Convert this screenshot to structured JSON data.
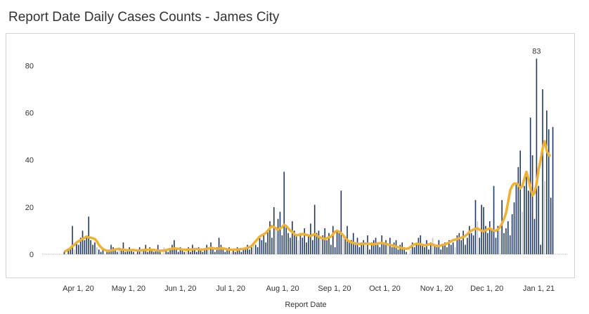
{
  "header": {
    "title": "Report Date Daily Cases Counts - James City"
  },
  "colors": {
    "bars": "#1f3864",
    "bars_light": "#c8c8c8",
    "moving_average": "#f0b030",
    "zero_line": "#aaaaaa",
    "frame": "#d4d4d4"
  },
  "chart_data": {
    "type": "bar",
    "title": "Report Date Daily Cases Counts - James City",
    "xlabel": "Report Date",
    "ylabel": "",
    "ylim": [
      -3,
      90
    ],
    "yticks": [
      0,
      20,
      40,
      60,
      80
    ],
    "x_start": "2020-03-23",
    "x_end": "2021-01-10",
    "xticks": [
      {
        "label": "Apr 1, 20",
        "date": "2020-04-01"
      },
      {
        "label": "May 1, 20",
        "date": "2020-05-01"
      },
      {
        "label": "Jun 1, 20",
        "date": "2020-06-01"
      },
      {
        "label": "Jul 1, 20",
        "date": "2020-07-01"
      },
      {
        "label": "Aug 1, 20",
        "date": "2020-08-01"
      },
      {
        "label": "Sep 1, 20",
        "date": "2020-09-01"
      },
      {
        "label": "Oct 1, 20",
        "date": "2020-10-01"
      },
      {
        "label": "Nov 1, 20",
        "date": "2020-11-01"
      },
      {
        "label": "Dec 1, 20",
        "date": "2020-12-01"
      },
      {
        "label": "Jan 1, 21",
        "date": "2021-01-01"
      }
    ],
    "peak_label": "83",
    "series": [
      {
        "kind": "bars",
        "values": [
          1,
          0,
          2,
          3,
          12,
          2,
          5,
          4,
          7,
          10,
          6,
          8,
          16,
          6,
          4,
          5,
          3,
          2,
          1,
          2,
          0,
          1,
          2,
          4,
          3,
          2,
          1,
          3,
          2,
          5,
          1,
          2,
          3,
          2,
          1,
          0,
          2,
          3,
          1,
          2,
          4,
          1,
          3,
          2,
          1,
          2,
          4,
          1,
          0,
          3,
          2,
          1,
          2,
          4,
          6,
          2,
          1,
          3,
          2,
          1,
          2,
          3,
          1,
          4,
          2,
          1,
          3,
          2,
          1,
          2,
          4,
          3,
          5,
          2,
          1,
          3,
          7,
          4,
          2,
          1,
          2,
          3,
          1,
          2,
          1,
          3,
          2,
          1,
          2,
          3,
          4,
          2,
          3,
          5,
          4,
          3,
          8,
          6,
          9,
          5,
          10,
          14,
          7,
          20,
          11,
          15,
          18,
          8,
          35,
          12,
          9,
          7,
          14,
          10,
          8,
          6,
          9,
          7,
          11,
          5,
          8,
          13,
          6,
          21,
          9,
          10,
          7,
          8,
          11,
          6,
          9,
          4,
          12,
          3,
          10,
          9,
          27,
          8,
          7,
          12,
          5,
          6,
          9,
          4,
          7,
          3,
          5,
          6,
          4,
          8,
          2,
          5,
          6,
          7,
          4,
          3,
          8,
          5,
          6,
          4,
          7,
          3,
          5,
          6,
          2,
          4,
          5,
          3,
          1,
          0,
          2,
          5,
          3,
          4,
          7,
          8,
          4,
          3,
          6,
          2,
          5,
          7,
          4,
          3,
          6,
          2,
          4,
          5,
          3,
          6,
          4,
          5,
          3,
          8,
          9,
          6,
          10,
          4,
          7,
          12,
          9,
          8,
          23,
          14,
          7,
          21,
          20,
          12,
          9,
          14,
          11,
          29,
          7,
          12,
          10,
          23,
          9,
          11,
          14,
          8,
          17,
          22,
          30,
          37,
          44,
          18,
          29,
          34,
          27,
          58,
          42,
          15,
          83,
          29,
          4,
          70,
          31,
          61,
          53,
          24,
          54
        ]
      },
      {
        "kind": "line",
        "name": "",
        "values": [
          1,
          1.5,
          2,
          2.5,
          3.5,
          4,
          5,
          5.5,
          6,
          6.5,
          7,
          7.5,
          7.2,
          7,
          6.8,
          6.5,
          5.5,
          4,
          3,
          2.2,
          1.8,
          1.5,
          1.5,
          1.6,
          1.8,
          2,
          2.2,
          2.2,
          2,
          2,
          1.8,
          1.7,
          1.7,
          1.8,
          1.8,
          1.7,
          1.6,
          1.6,
          1.7,
          1.8,
          1.8,
          1.9,
          2,
          1.9,
          1.8,
          1.7,
          1.6,
          1.5,
          1.5,
          1.6,
          1.8,
          2,
          2.2,
          2.4,
          2.5,
          2.4,
          2.3,
          2.2,
          2,
          1.9,
          1.9,
          2,
          2,
          2.1,
          2.2,
          2.2,
          2.1,
          2,
          2,
          2.1,
          2.3,
          2.5,
          2.7,
          2.6,
          2.4,
          2.3,
          2.4,
          2.6,
          2.5,
          2.3,
          2.1,
          2,
          1.9,
          1.9,
          2,
          2,
          2.1,
          2.2,
          2.3,
          2.5,
          2.8,
          3,
          3.5,
          4.5,
          5.5,
          6.5,
          7.5,
          8,
          8.5,
          9,
          10,
          11,
          12,
          11.5,
          11,
          10.5,
          11,
          11.5,
          12.5,
          12,
          11,
          10,
          9.5,
          8.5,
          8,
          8.2,
          8.4,
          8.6,
          8.5,
          8.2,
          8,
          7.8,
          8.2,
          8.5,
          8,
          7.5,
          7,
          6.8,
          6.5,
          6.8,
          7.2,
          7.5,
          8.5,
          9.5,
          10,
          9.5,
          9,
          8,
          7,
          6,
          5.5,
          5,
          4.8,
          4.6,
          4.5,
          4.4,
          4.4,
          4.5,
          4.6,
          4.5,
          4.4,
          4.3,
          4.2,
          4.4,
          4.6,
          4.7,
          4.8,
          4.6,
          4.4,
          4.2,
          4,
          3.8,
          3.5,
          3.2,
          3,
          2.8,
          2.6,
          2.4,
          2.3,
          2.5,
          3,
          3.8,
          4.2,
          4.5,
          4.4,
          4.3,
          4,
          3.8,
          3.9,
          4.2,
          4.3,
          4.1,
          3.8,
          3.6,
          3.5,
          3.7,
          4,
          4.2,
          4.5,
          5,
          5.5,
          6,
          6.2,
          6.5,
          6.8,
          7,
          7.3,
          7.8,
          8.5,
          9.5,
          10,
          10.5,
          10.8,
          11,
          10.5,
          10,
          9.8,
          10.2,
          10.6,
          11,
          10.5,
          10,
          10,
          10.5,
          11.5,
          13,
          15,
          17.5,
          22,
          27,
          29,
          30,
          30,
          29.5,
          28,
          29,
          32,
          35,
          32,
          28,
          25,
          26,
          30,
          36,
          40,
          45,
          48,
          44,
          42,
          42
        ]
      }
    ]
  }
}
